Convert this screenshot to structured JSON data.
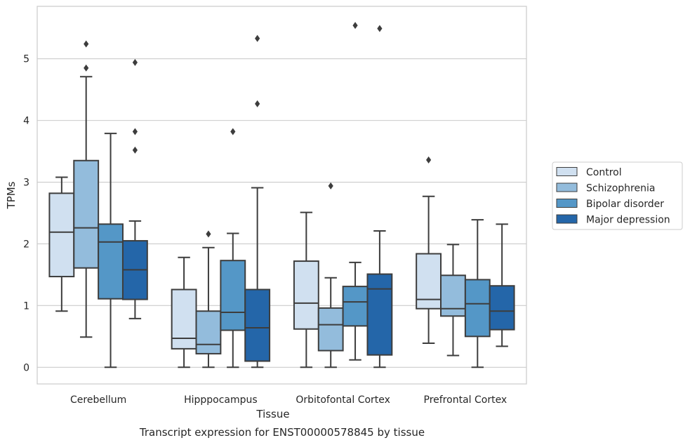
{
  "caption": "Transcript expression for ENST00000578845 by tissue",
  "chart_data": {
    "type": "box",
    "xlabel": "Tissue",
    "ylabel": "TPMs",
    "ylim": [
      -0.27,
      5.85
    ],
    "yticks": [
      0,
      1,
      2,
      3,
      4,
      5
    ],
    "grid": "horizontal",
    "legend_position": "right",
    "categories": [
      "Cerebellum",
      "Hipppocampus",
      "Orbitofontal Cortex",
      "Prefrontal Cortex"
    ],
    "series": [
      {
        "name": "Control",
        "color": "#d0e0f0",
        "boxes": [
          {
            "whislo": 0.91,
            "q1": 1.47,
            "med": 2.19,
            "q3": 2.82,
            "whishi": 3.08,
            "fliers": []
          },
          {
            "whislo": 0.0,
            "q1": 0.3,
            "med": 0.47,
            "q3": 1.26,
            "whishi": 1.78,
            "fliers": []
          },
          {
            "whislo": 0.0,
            "q1": 0.62,
            "med": 1.04,
            "q3": 1.72,
            "whishi": 2.51,
            "fliers": []
          },
          {
            "whislo": 0.39,
            "q1": 0.95,
            "med": 1.1,
            "q3": 1.84,
            "whishi": 2.77,
            "fliers": [
              3.36
            ]
          }
        ]
      },
      {
        "name": "Schizophrenia",
        "color": "#93bcdc",
        "boxes": [
          {
            "whislo": 0.49,
            "q1": 1.61,
            "med": 2.26,
            "q3": 3.35,
            "whishi": 4.71,
            "fliers": [
              4.85,
              5.24
            ]
          },
          {
            "whislo": 0.0,
            "q1": 0.22,
            "med": 0.37,
            "q3": 0.91,
            "whishi": 1.94,
            "fliers": [
              2.16
            ]
          },
          {
            "whislo": 0.0,
            "q1": 0.27,
            "med": 0.69,
            "q3": 0.96,
            "whishi": 1.45,
            "fliers": [
              2.94
            ]
          },
          {
            "whislo": 0.19,
            "q1": 0.83,
            "med": 0.95,
            "q3": 1.49,
            "whishi": 1.99,
            "fliers": []
          }
        ]
      },
      {
        "name": "Bipolar disorder",
        "color": "#5497c7",
        "boxes": [
          {
            "whislo": 0.0,
            "q1": 1.11,
            "med": 2.03,
            "q3": 2.32,
            "whishi": 3.79,
            "fliers": []
          },
          {
            "whislo": 0.0,
            "q1": 0.6,
            "med": 0.89,
            "q3": 1.73,
            "whishi": 2.17,
            "fliers": [
              3.82
            ]
          },
          {
            "whislo": 0.12,
            "q1": 0.67,
            "med": 1.06,
            "q3": 1.31,
            "whishi": 1.7,
            "fliers": [
              5.54
            ]
          },
          {
            "whislo": 0.0,
            "q1": 0.5,
            "med": 1.03,
            "q3": 1.42,
            "whishi": 2.39,
            "fliers": []
          }
        ]
      },
      {
        "name": "Major depression",
        "color": "#2466a9",
        "boxes": [
          {
            "whislo": 0.79,
            "q1": 1.1,
            "med": 1.58,
            "q3": 2.05,
            "whishi": 2.37,
            "fliers": [
              3.52,
              3.82,
              4.94
            ]
          },
          {
            "whislo": 0.0,
            "q1": 0.1,
            "med": 0.64,
            "q3": 1.26,
            "whishi": 2.91,
            "fliers": [
              4.27,
              5.33
            ]
          },
          {
            "whislo": 0.0,
            "q1": 0.2,
            "med": 1.27,
            "q3": 1.51,
            "whishi": 2.21,
            "fliers": [
              5.49
            ]
          },
          {
            "whislo": 0.34,
            "q1": 0.61,
            "med": 0.91,
            "q3": 1.32,
            "whishi": 2.32,
            "fliers": []
          }
        ]
      }
    ]
  }
}
